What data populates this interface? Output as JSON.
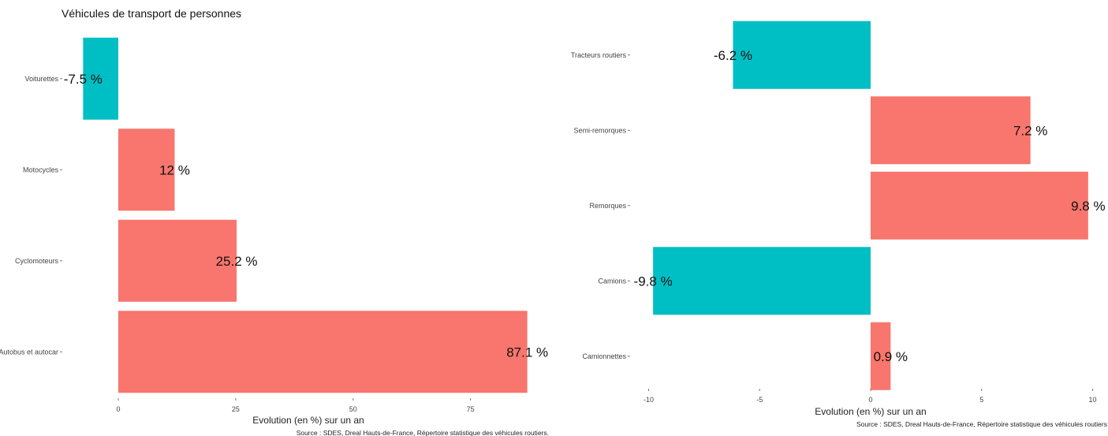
{
  "colors": {
    "positive": "#f8766d",
    "negative": "#00bfc4"
  },
  "chart_data": [
    {
      "type": "bar",
      "orientation": "horizontal",
      "title": "Véhicules de transport de personnes",
      "xlabel": "Evolution (en %) sur un an",
      "ylabel": "",
      "source": "Source : SDES, Dreal Hauts-de-France, Répertoire statistique des véhicules routiers.",
      "categories": [
        "Voiturettes",
        "Motocycles",
        "Cyclomoteurs",
        "Autobus et autocar"
      ],
      "values": [
        -7.5,
        12,
        25.2,
        87.1
      ],
      "data_labels": [
        "-7.5 %",
        "12 %",
        "25.2 %",
        "87.1 %"
      ],
      "xticks": [
        0,
        25,
        50,
        75
      ],
      "xlim": [
        -7.5,
        87.1
      ],
      "grid": false
    },
    {
      "type": "bar",
      "orientation": "horizontal",
      "title": "",
      "xlabel": "Evolution (en %) sur un an",
      "ylabel": "",
      "source": "Source : SDES, Dreal Hauts-de-France, Répertoire statistique des véhicules routiers",
      "categories": [
        "Tracteurs routiers",
        "Semi-remorques",
        "Remorques",
        "Camions",
        "Camionnettes"
      ],
      "values": [
        -6.2,
        7.2,
        9.8,
        -9.8,
        0.9
      ],
      "data_labels": [
        "-6.2 %",
        "7.2 %",
        "9.8 %",
        "-9.8 %",
        "0.9 %"
      ],
      "xticks": [
        -10,
        -5,
        0,
        5,
        10
      ],
      "xlim": [
        -9.8,
        9.8
      ],
      "grid": false
    }
  ]
}
